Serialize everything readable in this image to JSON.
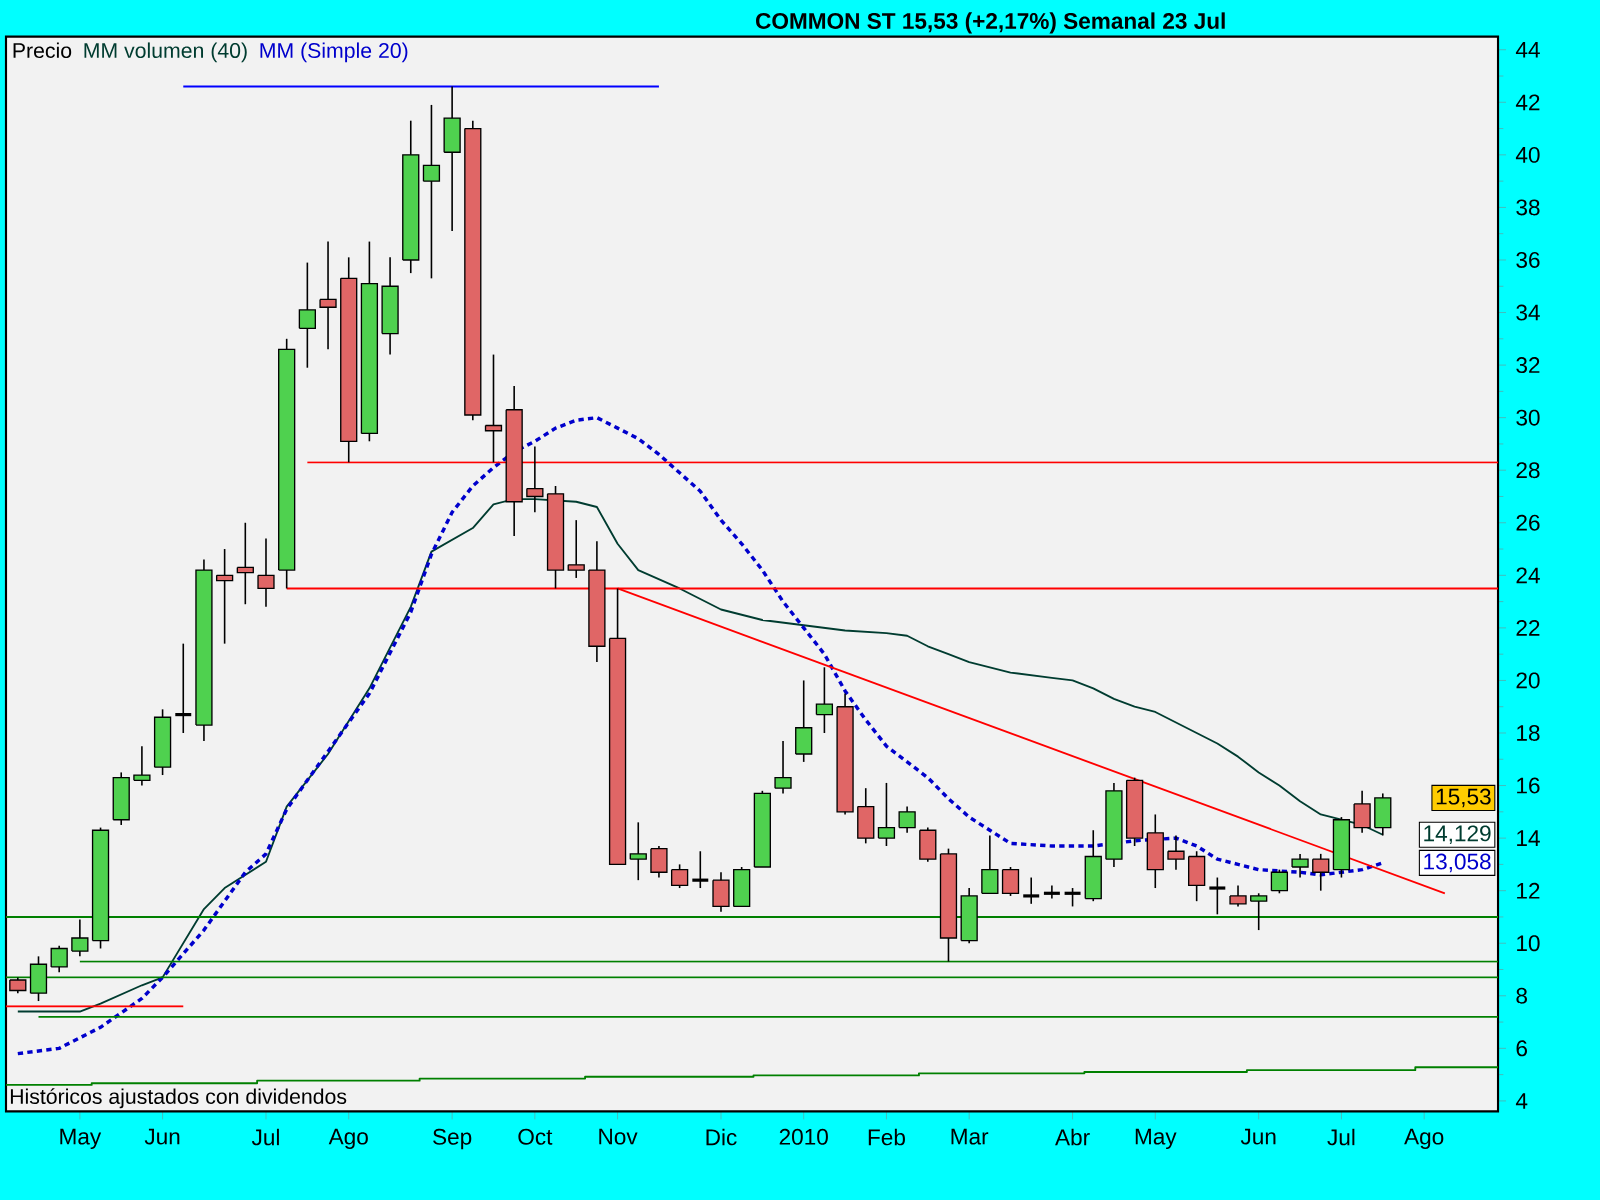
{
  "chart_data": {
    "type": "candlestick",
    "title": "COMMON ST 15,53 (+2,17%) Semanal 23 Jul",
    "ylabel": "Precio",
    "annotations": [
      "Históricos ajustados con dividendos",
      {
        "text": "15,53",
        "x": "2010-07-19",
        "y": 15.53
      },
      {
        "text": "14,129",
        "x": "2010-07-19",
        "y": 14.129
      },
      {
        "text": "13,058",
        "x": "2010-07-19",
        "y": 13.058
      }
    ],
    "x": [
      "2009-04-13",
      "2009-04-20",
      "2009-04-27",
      "2009-05-04",
      "2009-05-11",
      "2009-05-18",
      "2009-05-25",
      "2009-06-01",
      "2009-06-08",
      "2009-06-15",
      "2009-06-22",
      "2009-06-29",
      "2009-07-06",
      "2009-07-13",
      "2009-07-20",
      "2009-07-27",
      "2009-08-03",
      "2009-08-10",
      "2009-08-17",
      "2009-08-24",
      "2009-08-31",
      "2009-09-07",
      "2009-09-14",
      "2009-09-21",
      "2009-09-28",
      "2009-10-05",
      "2009-10-12",
      "2009-10-19",
      "2009-10-26",
      "2009-11-02",
      "2009-11-09",
      "2009-11-16",
      "2009-11-23",
      "2009-11-30",
      "2009-12-07",
      "2009-12-14",
      "2009-12-21",
      "2009-12-28",
      "2010-01-04",
      "2010-01-11",
      "2010-01-18",
      "2010-01-25",
      "2010-02-01",
      "2010-02-08",
      "2010-02-15",
      "2010-02-22",
      "2010-03-01",
      "2010-03-08",
      "2010-03-15",
      "2010-03-22",
      "2010-03-29",
      "2010-04-05",
      "2010-04-12",
      "2010-04-19",
      "2010-04-26",
      "2010-05-03",
      "2010-05-10",
      "2010-05-17",
      "2010-05-24",
      "2010-05-31",
      "2010-06-07",
      "2010-06-14",
      "2010-06-21",
      "2010-06-28",
      "2010-07-05",
      "2010-07-12",
      "2010-07-19"
    ],
    "ohlc": [
      [
        8.6,
        8.7,
        8.1,
        8.2
      ],
      [
        8.1,
        9.5,
        7.8,
        9.2
      ],
      [
        9.1,
        9.9,
        8.9,
        9.8
      ],
      [
        9.7,
        10.9,
        9.5,
        10.2
      ],
      [
        10.1,
        14.4,
        9.8,
        14.3
      ],
      [
        14.7,
        16.5,
        14.5,
        16.3
      ],
      [
        16.2,
        17.5,
        16.0,
        16.4
      ],
      [
        16.7,
        18.9,
        16.4,
        18.6
      ],
      [
        18.7,
        21.4,
        18.0,
        18.7
      ],
      [
        18.3,
        24.6,
        17.7,
        24.2
      ],
      [
        24.0,
        25.0,
        21.4,
        23.8
      ],
      [
        24.3,
        26.0,
        22.9,
        24.1
      ],
      [
        24.0,
        25.4,
        22.8,
        23.5
      ],
      [
        24.2,
        33.0,
        23.5,
        32.6
      ],
      [
        33.4,
        35.9,
        31.9,
        34.1
      ],
      [
        34.5,
        36.7,
        32.6,
        34.2
      ],
      [
        35.3,
        36.1,
        28.3,
        29.1
      ],
      [
        29.4,
        36.7,
        29.1,
        35.1
      ],
      [
        33.2,
        36.1,
        32.4,
        35.0
      ],
      [
        36.0,
        41.3,
        35.5,
        40.0
      ],
      [
        39.0,
        41.9,
        35.3,
        39.6
      ],
      [
        40.1,
        42.6,
        37.1,
        41.4
      ],
      [
        41.0,
        41.3,
        29.9,
        30.1
      ],
      [
        29.7,
        32.4,
        28.3,
        29.5
      ],
      [
        30.3,
        31.2,
        25.5,
        26.8
      ],
      [
        27.3,
        28.9,
        26.4,
        27.0
      ],
      [
        27.1,
        27.4,
        23.5,
        24.2
      ],
      [
        24.4,
        26.1,
        23.9,
        24.2
      ],
      [
        24.2,
        25.3,
        20.7,
        21.3
      ],
      [
        21.6,
        23.5,
        13.0,
        13.0
      ],
      [
        13.2,
        14.6,
        12.4,
        13.4
      ],
      [
        13.6,
        13.7,
        12.5,
        12.7
      ],
      [
        12.8,
        13.0,
        12.1,
        12.2
      ],
      [
        12.4,
        13.5,
        12.1,
        12.4
      ],
      [
        12.4,
        12.7,
        11.2,
        11.4
      ],
      [
        11.4,
        12.9,
        11.4,
        12.8
      ],
      [
        12.9,
        15.8,
        12.9,
        15.7
      ],
      [
        15.9,
        17.7,
        15.7,
        16.3
      ],
      [
        17.2,
        20.0,
        16.9,
        18.2
      ],
      [
        18.7,
        20.5,
        18.0,
        19.1
      ],
      [
        19.0,
        19.5,
        14.9,
        15.0
      ],
      [
        15.2,
        15.9,
        13.8,
        14.0
      ],
      [
        14.0,
        16.1,
        13.7,
        14.4
      ],
      [
        14.4,
        15.2,
        14.2,
        15.0
      ],
      [
        14.3,
        14.4,
        13.1,
        13.2
      ],
      [
        13.4,
        13.6,
        9.3,
        10.2
      ],
      [
        10.1,
        12.1,
        10.0,
        11.8
      ],
      [
        11.9,
        14.1,
        11.9,
        12.8
      ],
      [
        12.8,
        12.9,
        11.8,
        11.9
      ],
      [
        11.8,
        12.5,
        11.5,
        11.8
      ],
      [
        11.9,
        12.2,
        11.7,
        11.9
      ],
      [
        11.9,
        12.1,
        11.4,
        11.9
      ],
      [
        11.7,
        14.3,
        11.6,
        13.3
      ],
      [
        13.2,
        16.1,
        12.9,
        15.8
      ],
      [
        16.2,
        16.3,
        13.7,
        14.0
      ],
      [
        14.2,
        14.9,
        12.1,
        12.8
      ],
      [
        13.5,
        14.1,
        12.8,
        13.2
      ],
      [
        13.3,
        13.5,
        11.6,
        12.2
      ],
      [
        12.1,
        12.5,
        11.1,
        12.1
      ],
      [
        11.8,
        12.2,
        11.4,
        11.5
      ],
      [
        11.6,
        11.9,
        10.5,
        11.8
      ],
      [
        12.0,
        12.8,
        11.9,
        12.7
      ],
      [
        12.9,
        13.4,
        12.5,
        13.2
      ],
      [
        13.2,
        13.4,
        12.0,
        12.7
      ],
      [
        12.8,
        14.8,
        12.5,
        14.7
      ],
      [
        15.3,
        15.8,
        14.2,
        14.4
      ],
      [
        14.4,
        15.7,
        14.1,
        15.53
      ]
    ],
    "colors": [
      "#e06666",
      "#4fd14f",
      "#4fd14f",
      "#4fd14f",
      "#4fd14f",
      "#4fd14f",
      "#4fd14f",
      "#4fd14f",
      "#000000",
      "#4fd14f",
      "#e06666",
      "#e06666",
      "#e06666",
      "#4fd14f",
      "#4fd14f",
      "#e06666",
      "#e06666",
      "#4fd14f",
      "#4fd14f",
      "#4fd14f",
      "#4fd14f",
      "#4fd14f",
      "#e06666",
      "#e06666",
      "#e06666",
      "#e06666",
      "#e06666",
      "#e06666",
      "#e06666",
      "#e06666",
      "#4fd14f",
      "#e06666",
      "#e06666",
      "#000000",
      "#e06666",
      "#4fd14f",
      "#4fd14f",
      "#4fd14f",
      "#4fd14f",
      "#4fd14f",
      "#e06666",
      "#e06666",
      "#4fd14f",
      "#4fd14f",
      "#e06666",
      "#e06666",
      "#4fd14f",
      "#4fd14f",
      "#e06666",
      "#000000",
      "#000000",
      "#000000",
      "#4fd14f",
      "#4fd14f",
      "#e06666",
      "#e06666",
      "#e06666",
      "#e06666",
      "#000000",
      "#e06666",
      "#4fd14f",
      "#4fd14f",
      "#4fd14f",
      "#e06666",
      "#4fd14f",
      "#e06666",
      "#4fd14f"
    ],
    "series": [
      {
        "type": "line",
        "name": "MM volumen (40)",
        "color": "#003c30",
        "x": [
          "2009-04-13",
          "2009-05-04",
          "2009-05-11",
          "2009-05-25",
          "2009-06-01",
          "2009-06-15",
          "2009-06-22",
          "2009-07-06",
          "2009-07-13",
          "2009-07-27",
          "2009-08-10",
          "2009-08-24",
          "2009-08-31",
          "2009-09-14",
          "2009-09-21",
          "2009-09-28",
          "2009-10-05",
          "2009-10-19",
          "2009-10-26",
          "2009-11-02",
          "2009-11-09",
          "2009-11-23",
          "2009-12-07",
          "2009-12-21",
          "2010-01-04",
          "2010-01-18",
          "2010-02-01",
          "2010-02-08",
          "2010-02-15",
          "2010-02-22",
          "2010-03-01",
          "2010-03-15",
          "2010-03-29",
          "2010-04-05",
          "2010-04-12",
          "2010-04-19",
          "2010-04-26",
          "2010-05-03",
          "2010-05-10",
          "2010-05-17",
          "2010-05-24",
          "2010-05-31",
          "2010-06-07",
          "2010-06-14",
          "2010-06-21",
          "2010-06-28",
          "2010-07-05",
          "2010-07-12",
          "2010-07-19"
        ],
        "values": [
          7.4,
          7.4,
          7.7,
          8.4,
          8.7,
          11.3,
          12.1,
          13.1,
          15.2,
          17.2,
          19.7,
          22.8,
          24.9,
          25.8,
          26.7,
          26.9,
          26.9,
          26.8,
          26.6,
          25.2,
          24.2,
          23.5,
          22.7,
          22.3,
          22.1,
          21.9,
          21.8,
          21.7,
          21.3,
          21.0,
          20.7,
          20.3,
          20.1,
          20.0,
          19.7,
          19.3,
          19.0,
          18.8,
          18.4,
          18.0,
          17.6,
          17.1,
          16.5,
          16.0,
          15.4,
          14.9,
          14.7,
          14.5,
          14.129
        ]
      },
      {
        "type": "line",
        "name": "MM (Simple 20)",
        "color": "#0000cc",
        "line_style": "dashed",
        "x": [
          "2009-04-13",
          "2009-04-27",
          "2009-05-04",
          "2009-05-11",
          "2009-05-25",
          "2009-06-01",
          "2009-06-08",
          "2009-06-15",
          "2009-06-29",
          "2009-07-06",
          "2009-07-13",
          "2009-07-27",
          "2009-08-10",
          "2009-08-24",
          "2009-08-31",
          "2009-09-07",
          "2009-09-14",
          "2009-09-21",
          "2009-09-28",
          "2009-10-05",
          "2009-10-12",
          "2009-10-19",
          "2009-10-26",
          "2009-11-02",
          "2009-11-09",
          "2009-11-16",
          "2009-11-23",
          "2009-11-30",
          "2009-12-07",
          "2009-12-14",
          "2009-12-21",
          "2009-12-28",
          "2010-01-04",
          "2010-01-11",
          "2010-01-18",
          "2010-01-25",
          "2010-02-01",
          "2010-02-08",
          "2010-02-15",
          "2010-02-22",
          "2010-03-01",
          "2010-03-08",
          "2010-03-15",
          "2010-03-29",
          "2010-04-12",
          "2010-04-26",
          "2010-05-10",
          "2010-05-17",
          "2010-05-24",
          "2010-05-31",
          "2010-06-07",
          "2010-06-21",
          "2010-06-28",
          "2010-07-05",
          "2010-07-12",
          "2010-07-19"
        ],
        "values": [
          5.8,
          6.0,
          6.4,
          6.8,
          7.9,
          8.7,
          9.6,
          10.5,
          12.7,
          13.4,
          15.1,
          17.3,
          19.5,
          22.6,
          24.8,
          26.4,
          27.4,
          28.1,
          28.7,
          29.1,
          29.6,
          29.9,
          30.0,
          29.6,
          29.2,
          28.6,
          27.9,
          27.2,
          26.1,
          25.2,
          24.2,
          23.0,
          22.0,
          21.0,
          19.6,
          18.5,
          17.5,
          16.9,
          16.3,
          15.5,
          14.8,
          14.3,
          13.8,
          13.7,
          13.7,
          13.9,
          14.0,
          13.7,
          13.2,
          13.0,
          12.8,
          12.7,
          12.6,
          12.7,
          12.8,
          13.058
        ]
      },
      {
        "type": "line",
        "color": "#ff0000",
        "x": [
          "2009-11-02",
          "2010-08-09"
        ],
        "values": [
          23.5,
          11.9
        ]
      },
      {
        "type": "line",
        "color": "#ff0000",
        "x": [
          "2009-07-20",
          "2010-08-27"
        ],
        "values": [
          28.3,
          28.3
        ]
      },
      {
        "type": "line",
        "color": "#ff0000",
        "x": [
          "2009-07-13",
          "2010-08-27"
        ],
        "values": [
          23.5,
          23.5
        ]
      },
      {
        "type": "line",
        "color": "#ff0000",
        "x": [
          "2009-04-09",
          "2009-06-08"
        ],
        "values": [
          7.6,
          7.6
        ]
      },
      {
        "type": "line",
        "color": "#0000ff",
        "x": [
          "2009-06-08",
          "2009-11-16"
        ],
        "values": [
          42.6,
          42.6
        ]
      },
      {
        "type": "line",
        "color": "#008000",
        "x": [
          "2009-04-09",
          "2010-08-27"
        ],
        "values": [
          11.0,
          11.0
        ]
      },
      {
        "type": "line",
        "color": "#008000",
        "x": [
          "2009-05-04",
          "2010-08-27"
        ],
        "values": [
          9.3,
          9.3
        ]
      },
      {
        "type": "line",
        "color": "#008000",
        "x": [
          "2009-04-09",
          "2010-08-27"
        ],
        "values": [
          8.7,
          8.7
        ]
      },
      {
        "type": "line",
        "color": "#008000",
        "x": [
          "2009-04-20",
          "2010-08-27"
        ],
        "values": [
          7.2,
          7.2
        ]
      },
      {
        "type": "step",
        "color": "#008000",
        "x": [
          "2009-04-09",
          "2009-05-08",
          "2009-07-03",
          "2009-08-27",
          "2009-10-22",
          "2009-12-18",
          "2010-02-12",
          "2010-04-09",
          "2010-06-03",
          "2010-07-30",
          "2010-08-27"
        ],
        "values": [
          4.61,
          4.67,
          4.77,
          4.85,
          4.92,
          4.97,
          5.05,
          5.1,
          5.17,
          5.28,
          5.28
        ]
      }
    ],
    "xlim": [
      "2009-04-09",
      "2010-08-27"
    ],
    "xticks": [
      {
        "value": "2009-05-04",
        "label": "May"
      },
      {
        "value": "2009-06-01",
        "label": "Jun"
      },
      {
        "value": "2009-07-06",
        "label": "Jul"
      },
      {
        "value": "2009-08-03",
        "label": "Ago"
      },
      {
        "value": "2009-09-07",
        "label": "Sep"
      },
      {
        "value": "2009-10-05",
        "label": "Oct"
      },
      {
        "value": "2009-11-02",
        "label": "Nov"
      },
      {
        "value": "2009-12-07",
        "label": "Dic"
      },
      {
        "value": "2010-01-04",
        "label": "2010"
      },
      {
        "value": "2010-02-01",
        "label": "Feb"
      },
      {
        "value": "2010-03-01",
        "label": "Mar"
      },
      {
        "value": "2010-04-05",
        "label": "Abr"
      },
      {
        "value": "2010-05-03",
        "label": "May"
      },
      {
        "value": "2010-06-07",
        "label": "Jun"
      },
      {
        "value": "2010-07-05",
        "label": "Jul"
      },
      {
        "value": "2010-08-02",
        "label": "Ago"
      }
    ],
    "ylim": [
      3.6,
      44.5
    ],
    "yticks": [
      4,
      6,
      8,
      10,
      12,
      14,
      16,
      18,
      20,
      22,
      24,
      26,
      28,
      30,
      32,
      34,
      36,
      38,
      40,
      42,
      44
    ],
    "legend": "top left",
    "grid": false
  }
}
